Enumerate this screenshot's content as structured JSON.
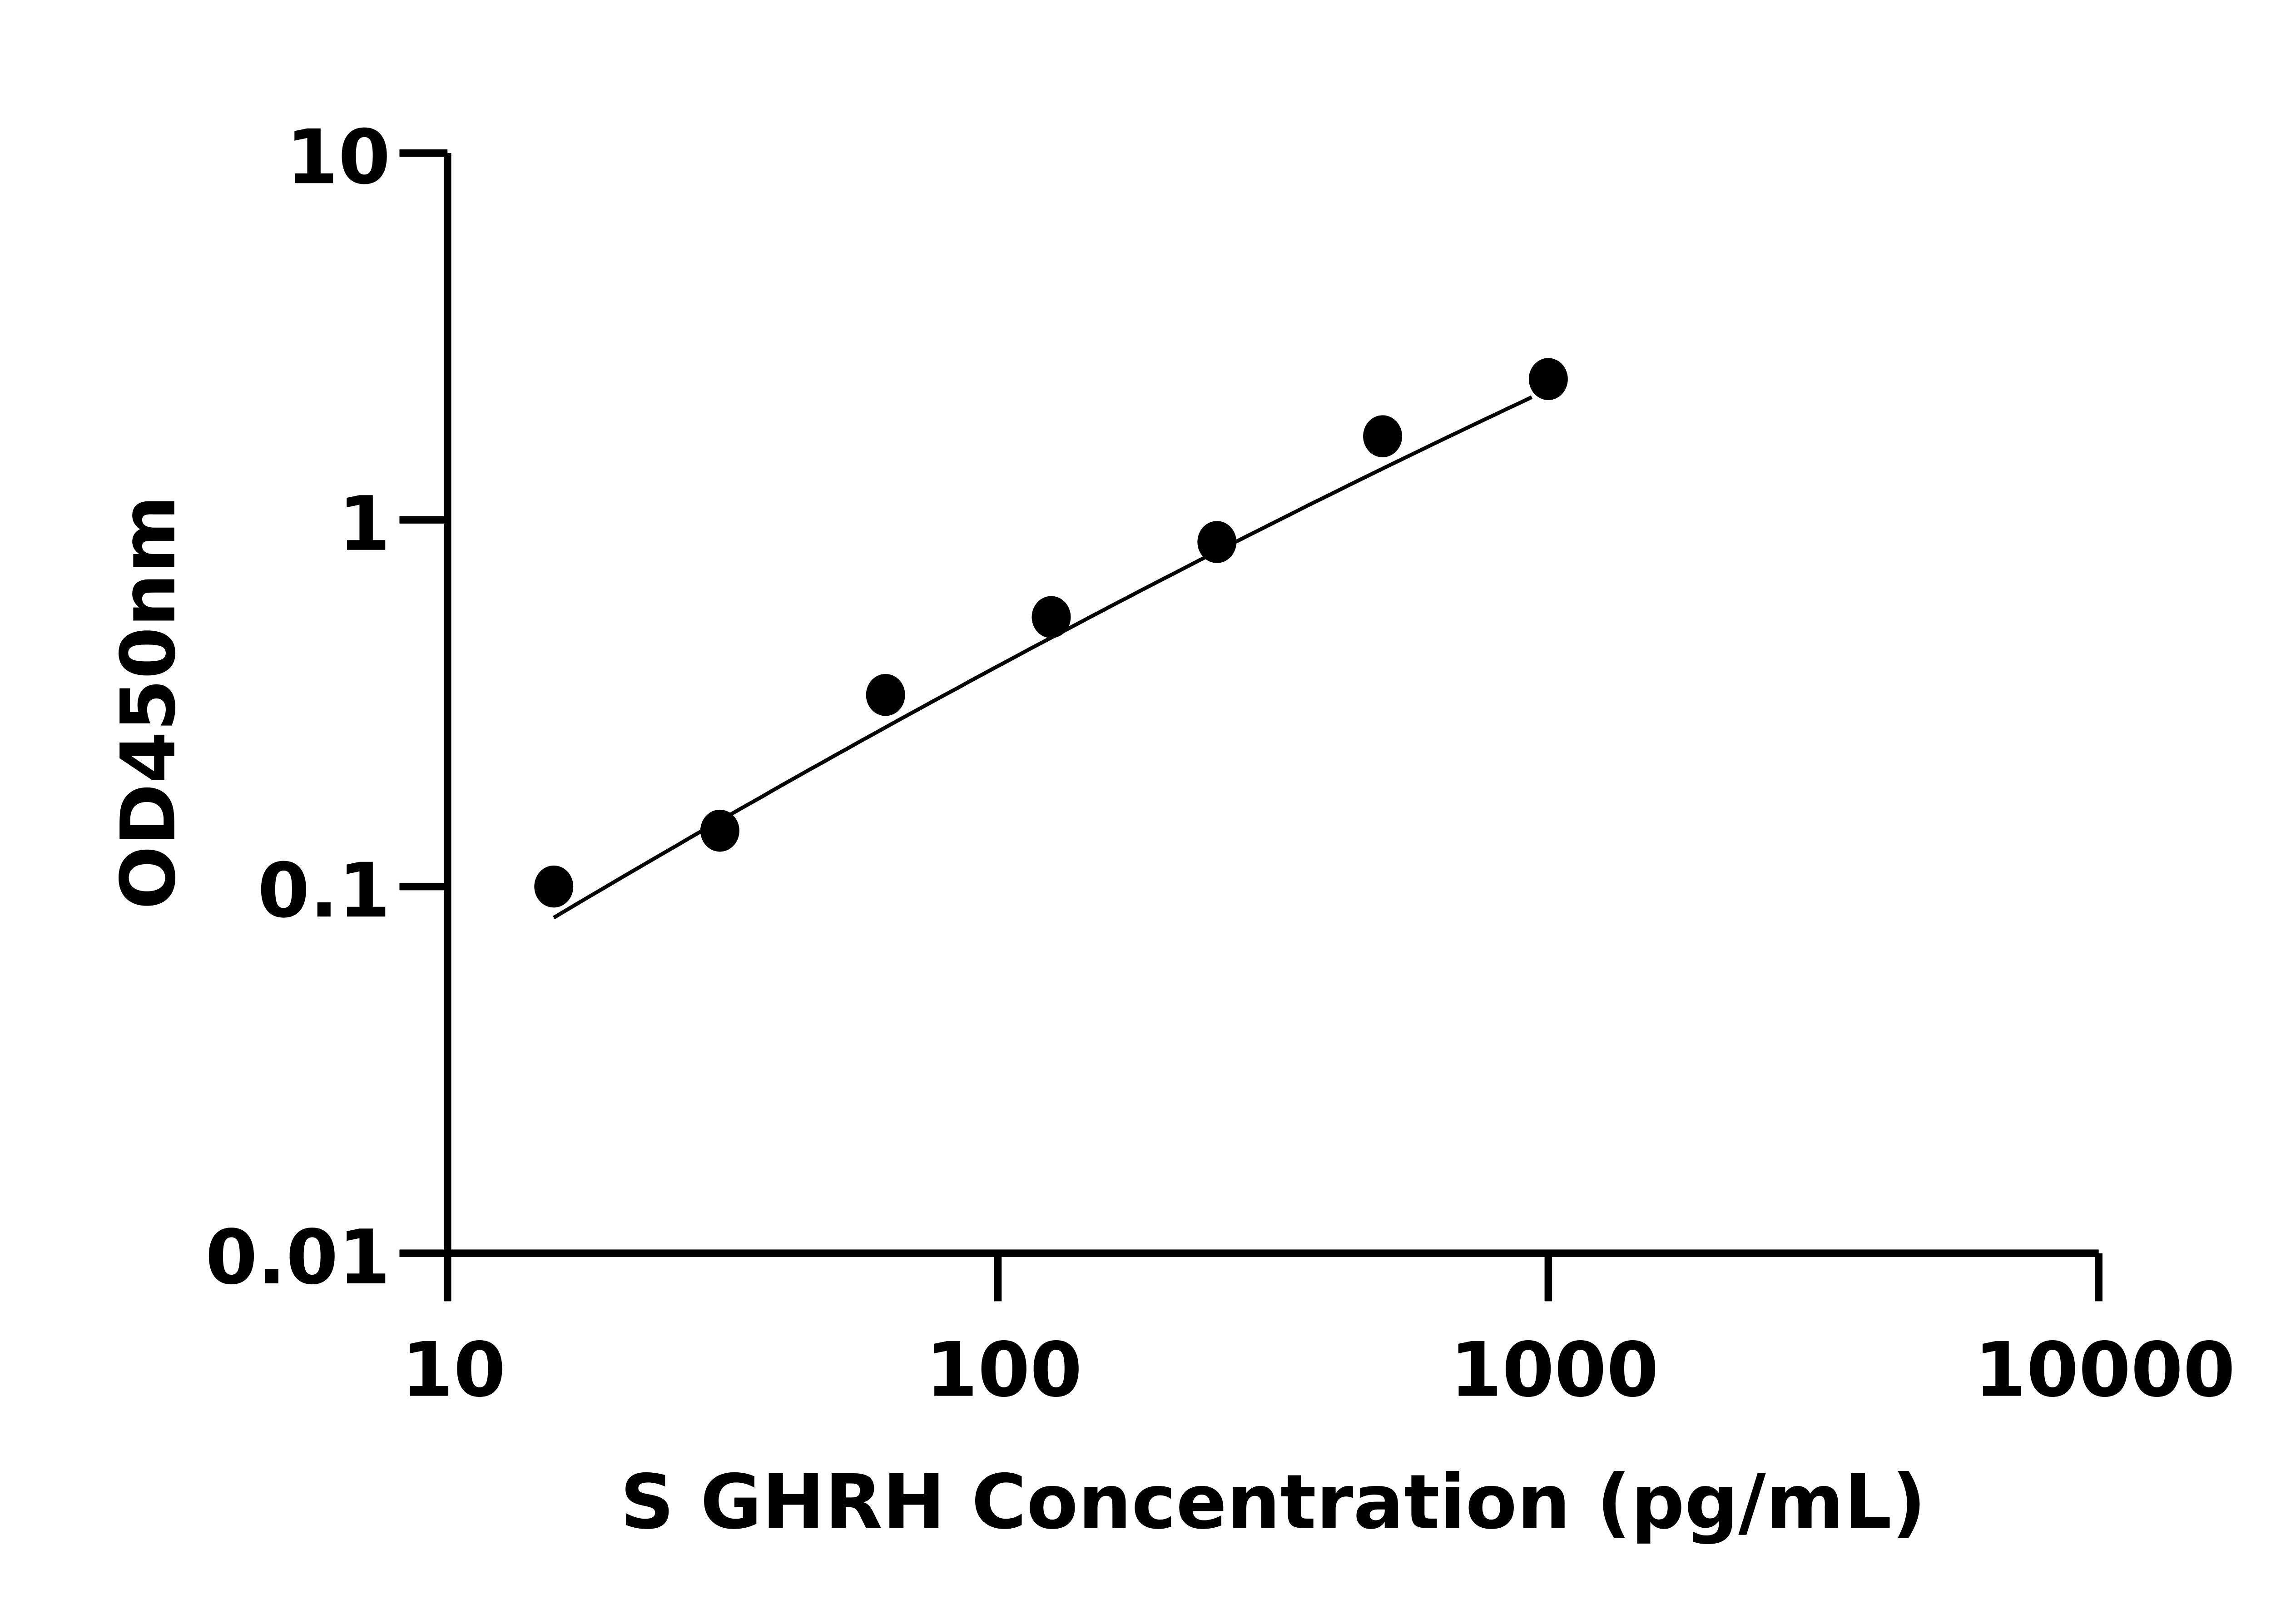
{
  "chart_data": {
    "type": "scatter",
    "xlabel": "S GHRH Concentration (pg/mL)",
    "ylabel": "OD450nm",
    "x_scale": "log",
    "y_scale": "log",
    "xlim": [
      10,
      10000
    ],
    "ylim": [
      0.01,
      10
    ],
    "x_ticks": [
      "10",
      "100",
      "1000",
      "10000"
    ],
    "y_ticks": [
      "0.01",
      "0.1",
      "1",
      "10"
    ],
    "grid": false,
    "fit_curve": true,
    "series": [
      {
        "x": [
          15.6,
          31.25,
          62.5,
          125,
          250,
          500,
          1000
        ],
        "y": [
          0.1,
          0.142,
          0.333,
          0.543,
          0.87,
          1.69,
          2.42
        ]
      }
    ],
    "colors": {
      "points": "#000000",
      "line": "#000000"
    }
  }
}
